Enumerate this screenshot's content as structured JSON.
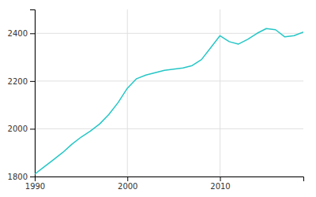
{
  "chart_data": {
    "type": "line",
    "x": [
      1990,
      1991,
      1992,
      1993,
      1994,
      1995,
      1996,
      1997,
      1998,
      1999,
      2000,
      2001,
      2002,
      2003,
      2004,
      2005,
      2006,
      2007,
      2008,
      2009,
      2010,
      2011,
      2012,
      2013,
      2014,
      2015,
      2016,
      2017,
      2018,
      2019
    ],
    "values": [
      1810,
      1840,
      1870,
      1900,
      1935,
      1965,
      1990,
      2020,
      2060,
      2110,
      2170,
      2210,
      2225,
      2235,
      2245,
      2250,
      2255,
      2265,
      2290,
      2340,
      2390,
      2365,
      2355,
      2375,
      2400,
      2420,
      2415,
      2385,
      2390,
      2405
    ],
    "color": "#26c6c6",
    "xlim": [
      1990,
      2019
    ],
    "ylim": [
      1800,
      2500
    ],
    "xticks": [
      1990,
      2000,
      2010
    ],
    "yticks": [
      1800,
      2000,
      2200,
      2400
    ],
    "grid": true
  }
}
